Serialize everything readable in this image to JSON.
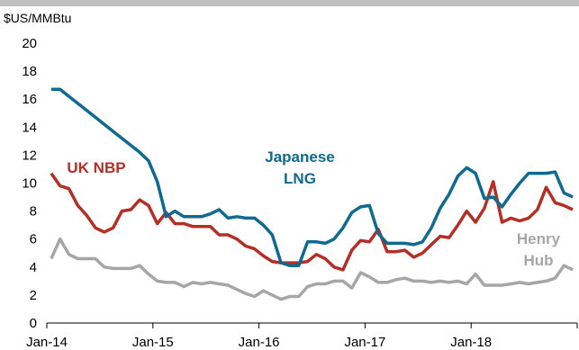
{
  "chart_data": {
    "type": "line",
    "unit_label": "$US/MMBtu",
    "ylim": [
      0,
      20
    ],
    "yticks": [
      0,
      2,
      4,
      6,
      8,
      10,
      12,
      14,
      16,
      18,
      20
    ],
    "xticks": [
      "Jan-14",
      "Jan-15",
      "Jan-16",
      "Jan-17",
      "Jan-18"
    ],
    "grid": false,
    "x": [
      "2014-01",
      "2014-02",
      "2014-03",
      "2014-04",
      "2014-05",
      "2014-06",
      "2014-07",
      "2014-08",
      "2014-09",
      "2014-10",
      "2014-11",
      "2014-12",
      "2015-01",
      "2015-02",
      "2015-03",
      "2015-04",
      "2015-05",
      "2015-06",
      "2015-07",
      "2015-08",
      "2015-09",
      "2015-10",
      "2015-11",
      "2015-12",
      "2016-01",
      "2016-02",
      "2016-03",
      "2016-04",
      "2016-05",
      "2016-06",
      "2016-07",
      "2016-08",
      "2016-09",
      "2016-10",
      "2016-11",
      "2016-12",
      "2017-01",
      "2017-02",
      "2017-03",
      "2017-04",
      "2017-05",
      "2017-06",
      "2017-07",
      "2017-08",
      "2017-09",
      "2017-10",
      "2017-11",
      "2017-12",
      "2018-01",
      "2018-02",
      "2018-03",
      "2018-04",
      "2018-05",
      "2018-06",
      "2018-07",
      "2018-08",
      "2018-09",
      "2018-10",
      "2018-11",
      "2018-12"
    ],
    "series": [
      {
        "name": "Japanese LNG",
        "label_lines": [
          "Japanese",
          "LNG"
        ],
        "color": "#0f6a91",
        "values": [
          16.7,
          16.7,
          16.2,
          15.7,
          15.2,
          14.7,
          14.2,
          13.7,
          13.2,
          12.7,
          12.2,
          11.6,
          10.1,
          7.6,
          8.0,
          7.6,
          7.6,
          7.6,
          7.8,
          8.1,
          7.5,
          7.6,
          7.5,
          7.5,
          7.0,
          6.3,
          4.3,
          4.1,
          4.1,
          5.8,
          5.8,
          5.7,
          6.0,
          6.8,
          7.9,
          8.3,
          8.4,
          6.4,
          5.7,
          5.7,
          5.7,
          5.6,
          5.8,
          6.8,
          8.2,
          9.2,
          10.5,
          11.1,
          10.7,
          8.9,
          9.0,
          8.3,
          9.2,
          10.0,
          10.7,
          10.7,
          10.7,
          10.8,
          9.3,
          9.0
        ]
      },
      {
        "name": "UK NBP",
        "label_lines": [
          "UK NBP"
        ],
        "color": "#b52e26",
        "values": [
          10.7,
          9.8,
          9.6,
          8.4,
          7.7,
          6.8,
          6.5,
          6.8,
          8.0,
          8.1,
          8.8,
          8.4,
          7.1,
          7.9,
          7.1,
          7.1,
          6.9,
          6.9,
          6.9,
          6.3,
          6.3,
          6.0,
          5.5,
          5.3,
          4.8,
          4.4,
          4.3,
          4.3,
          4.3,
          4.4,
          4.9,
          4.6,
          4.0,
          3.8,
          5.2,
          5.9,
          5.8,
          6.7,
          5.1,
          5.1,
          5.2,
          4.7,
          5.0,
          5.6,
          6.2,
          6.1,
          7.0,
          8.0,
          7.2,
          8.2,
          10.1,
          7.2,
          7.5,
          7.3,
          7.5,
          8.1,
          9.7,
          8.6,
          8.4,
          8.1
        ]
      },
      {
        "name": "Henry Hub",
        "label_lines": [
          "Henry",
          "Hub"
        ],
        "color": "#a6a6a6",
        "values": [
          4.6,
          6.0,
          4.9,
          4.6,
          4.6,
          4.6,
          4.0,
          3.9,
          3.9,
          3.9,
          4.1,
          3.5,
          3.0,
          2.9,
          2.9,
          2.6,
          2.9,
          2.8,
          2.9,
          2.8,
          2.7,
          2.4,
          2.1,
          1.9,
          2.3,
          2.0,
          1.7,
          1.9,
          1.9,
          2.6,
          2.8,
          2.8,
          3.0,
          3.0,
          2.5,
          3.6,
          3.3,
          2.9,
          2.9,
          3.1,
          3.2,
          3.0,
          3.0,
          2.9,
          3.0,
          2.9,
          3.0,
          2.8,
          3.5,
          2.7,
          2.7,
          2.7,
          2.8,
          2.9,
          2.8,
          2.9,
          3.0,
          3.2,
          4.1,
          3.8
        ]
      }
    ]
  }
}
